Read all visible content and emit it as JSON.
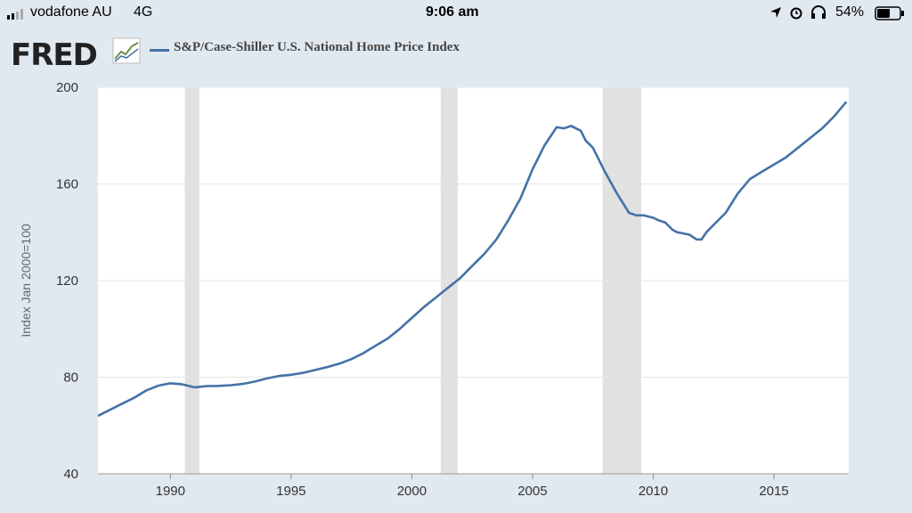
{
  "status_bar": {
    "carrier": "vodafone AU",
    "network": "4G",
    "time": "9:06 am",
    "battery": "54%"
  },
  "header": {
    "logo": "FRED",
    "series_title": "S&P/Case-Shiller U.S. National Home Price Index"
  },
  "colors": {
    "line": "#4572a7",
    "recession": "#e1e1e1",
    "background": "#e1e9f0"
  },
  "chart_data": {
    "type": "line",
    "title": "S&P/Case-Shiller U.S. National Home Price Index",
    "ylabel": "Index Jan 2000=100",
    "xlabel": "",
    "ylim": [
      40,
      200
    ],
    "xlim": [
      1987.0,
      2018.1
    ],
    "yticks": [
      40,
      80,
      120,
      160,
      200
    ],
    "xticks": [
      1990,
      1995,
      2000,
      2005,
      2010,
      2015
    ],
    "grid": true,
    "recessions": [
      [
        1990.6,
        1991.2
      ],
      [
        2001.2,
        2001.9
      ],
      [
        2007.9,
        2009.5
      ]
    ],
    "series": [
      {
        "x": [
          1987.0,
          1987.5,
          1988.0,
          1988.5,
          1989.0,
          1989.5,
          1990.0,
          1990.5,
          1991.0,
          1991.5,
          1992.0,
          1992.5,
          1993.0,
          1993.5,
          1994.0,
          1994.5,
          1995.0,
          1995.5,
          1996.0,
          1996.5,
          1997.0,
          1997.5,
          1998.0,
          1998.5,
          1999.0,
          1999.5,
          2000.0,
          2000.5,
          2001.0,
          2001.5,
          2002.0,
          2002.5,
          2003.0,
          2003.5,
          2004.0,
          2004.5,
          2005.0,
          2005.5,
          2006.0,
          2006.3,
          2006.6,
          2007.0,
          2007.2,
          2007.5,
          2007.8,
          2008.0,
          2008.5,
          2009.0,
          2009.3,
          2009.6,
          2010.0,
          2010.2,
          2010.5,
          2010.8,
          2011.0,
          2011.5,
          2011.8,
          2012.0,
          2012.2,
          2012.5,
          2013.0,
          2013.5,
          2014.0,
          2014.5,
          2015.0,
          2015.5,
          2016.0,
          2016.5,
          2017.0,
          2017.5,
          2018.0
        ],
        "values": [
          64,
          66.5,
          69,
          71.5,
          74.5,
          76.5,
          77.5,
          77,
          75.8,
          76.3,
          76.4,
          76.7,
          77.2,
          78.2,
          79.5,
          80.5,
          81,
          81.8,
          83,
          84.2,
          85.6,
          87.5,
          90,
          93,
          96,
          100,
          104.5,
          109,
          113,
          117,
          121,
          126,
          131,
          137,
          145,
          154,
          166,
          176,
          183.5,
          183,
          184,
          182,
          178,
          175,
          169,
          165,
          156,
          148,
          147,
          147,
          146,
          145,
          144,
          141,
          140,
          139,
          137,
          137,
          140,
          143,
          148,
          156,
          162,
          165,
          168,
          171,
          175,
          179,
          183,
          188,
          194
        ]
      }
    ]
  }
}
